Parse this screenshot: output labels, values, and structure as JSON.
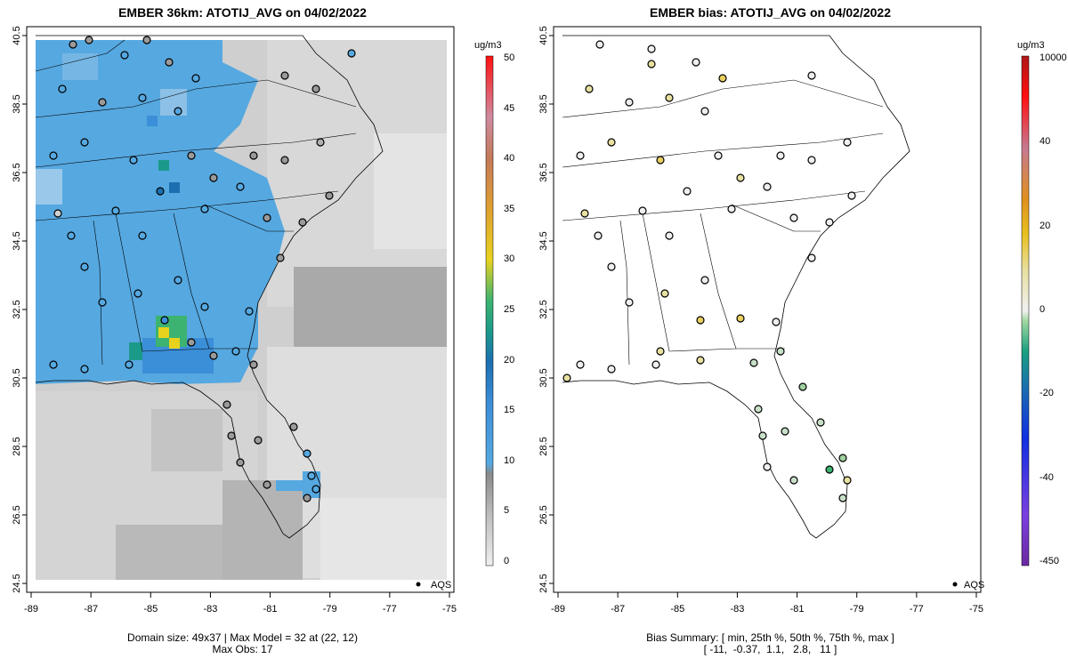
{
  "left_panel": {
    "title": "EMBER 36km: ATOTIJ_AVG on 04/02/2022",
    "y_ticks": [
      "40.5",
      "38.5",
      "36.5",
      "34.5",
      "32.5",
      "30.5",
      "28.5",
      "26.5",
      "24.5"
    ],
    "x_ticks": [
      "-89",
      "-87",
      "-85",
      "-83",
      "-81",
      "-79",
      "-77",
      "-75"
    ],
    "legend_label": "AQS",
    "caption_line1": "Domain size: 49x37 | Max Model = 32 at (22, 12)",
    "caption_line2": "Max Obs: 17",
    "colorbar": {
      "unit": "ug/m3",
      "ticks": [
        "50",
        "45",
        "40",
        "35",
        "30",
        "25",
        "20",
        "15",
        "10",
        "5",
        "0"
      ],
      "range": [
        0,
        50
      ]
    }
  },
  "right_panel": {
    "title": "EMBER bias: ATOTIJ_AVG on 04/02/2022",
    "y_ticks": [
      "40.5",
      "38.5",
      "36.5",
      "34.5",
      "32.5",
      "30.5",
      "28.5",
      "26.5",
      "24.5"
    ],
    "x_ticks": [
      "-89",
      "-87",
      "-85",
      "-83",
      "-81",
      "-79",
      "-77",
      "-75"
    ],
    "legend_label": "AQS",
    "caption_line1": "Bias Summary: [ min, 25th %, 50th %, 75th %, max ]",
    "caption_line2": "[ -11,  -0.37,  1.1,   2.8,   11 ]",
    "colorbar": {
      "unit": "ug/m3",
      "ticks": [
        "10000",
        "40",
        "20",
        "0",
        "-20",
        "-40",
        "-450"
      ]
    }
  },
  "colors": {
    "grey_low": "#e8e8e8",
    "grey_mid": "#b0b0b0",
    "blue_field": "#56a8e0",
    "green_hot": "#3cb371",
    "yellow_hot": "#e8d21e"
  }
}
